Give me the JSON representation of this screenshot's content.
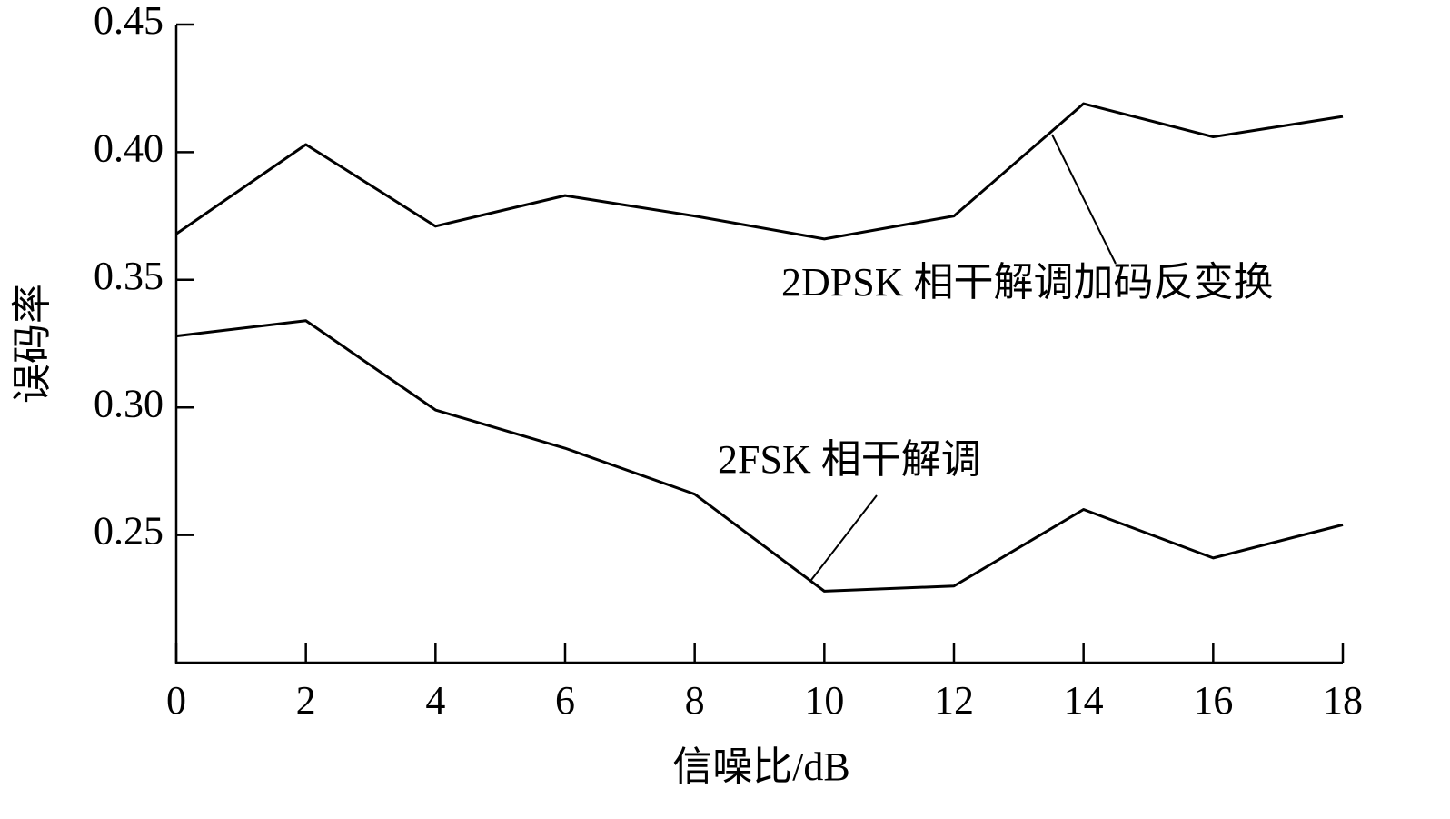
{
  "chart_data": {
    "type": "line",
    "x_label": "信噪比/dB",
    "y_label": "误码率",
    "x": [
      0,
      2,
      4,
      6,
      8,
      10,
      12,
      14,
      16,
      18
    ],
    "series": [
      {
        "name": "2DPSK 相干解调加码反变换",
        "color": "#000000",
        "values": [
          0.368,
          0.403,
          0.371,
          0.383,
          0.375,
          0.366,
          0.375,
          0.419,
          0.406,
          0.414
        ]
      },
      {
        "name": "2FSK 相干解调",
        "color": "#000000",
        "values": [
          0.328,
          0.334,
          0.299,
          0.284,
          0.266,
          0.228,
          0.23,
          0.26,
          0.241,
          0.254
        ]
      }
    ],
    "xlim": [
      0,
      18
    ],
    "xticks": [
      0,
      2,
      4,
      6,
      8,
      10,
      12,
      14,
      16,
      18
    ],
    "ylim": [
      0.2,
      0.45
    ],
    "yticks": [
      0.25,
      {
        "value": 0.3,
        "label": "0.30"
      },
      0.35,
      {
        "value": 0.4,
        "label": "0.40"
      },
      0.45
    ],
    "grid": false
  }
}
